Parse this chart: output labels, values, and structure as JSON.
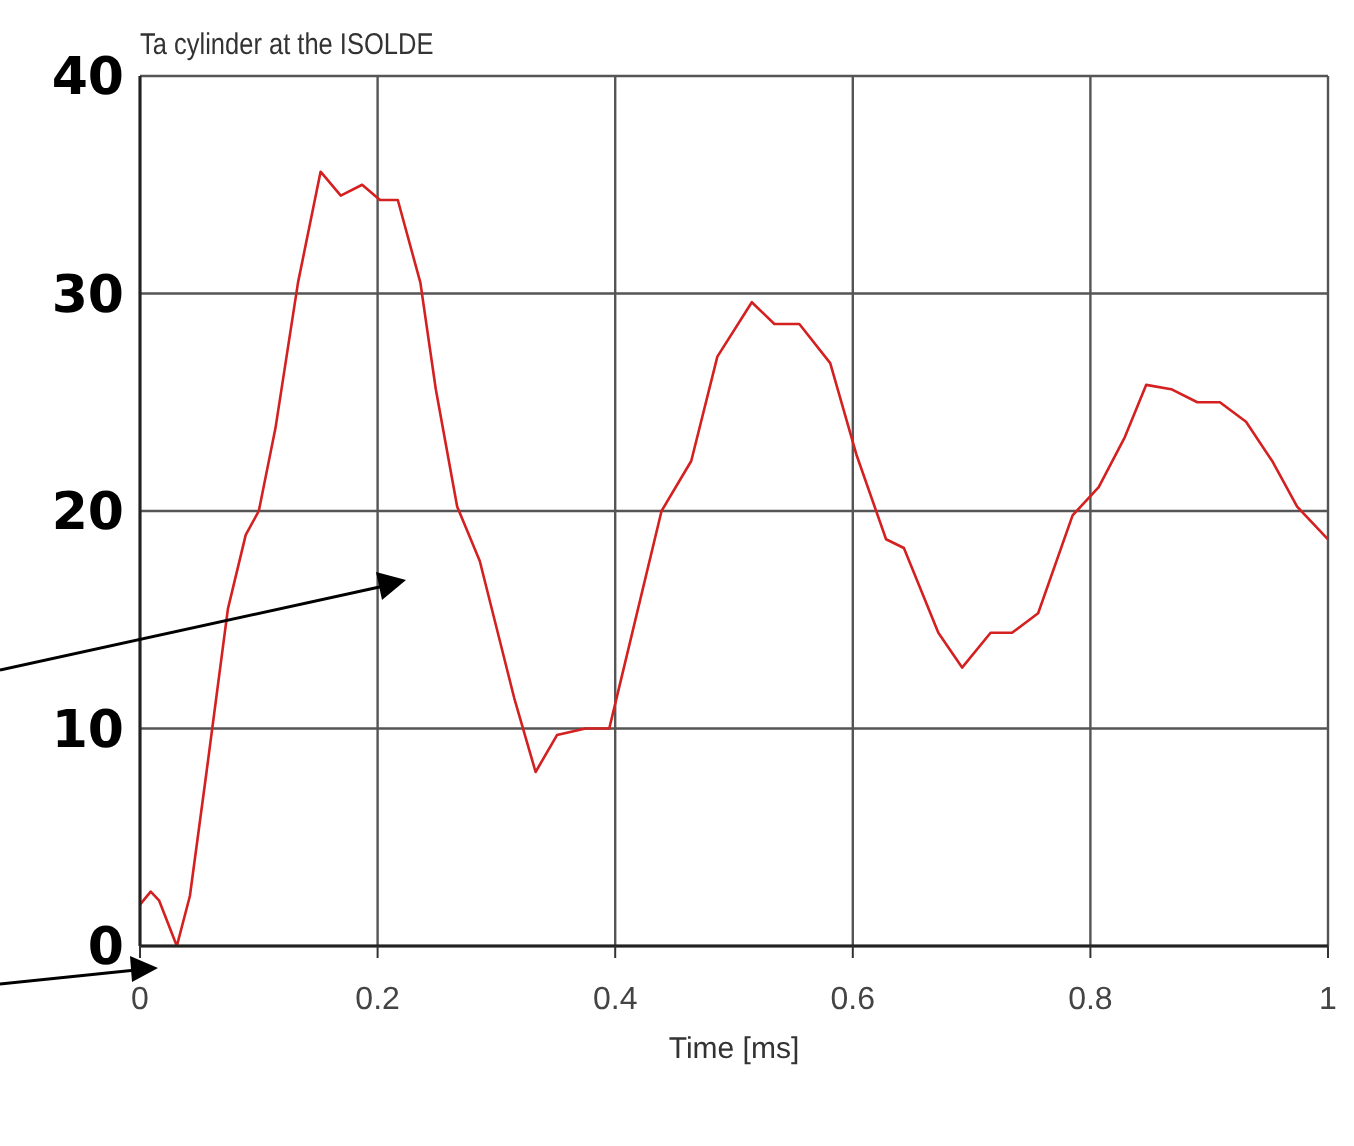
{
  "chart_data": {
    "type": "line",
    "title": "Ta cylinder at the ISOLDE",
    "xlabel": "Time [ms]",
    "x": [
      0,
      0.009,
      0.016,
      0.031,
      0.042,
      0.056,
      0.074,
      0.089,
      0.1,
      0.114,
      0.133,
      0.152,
      0.169,
      0.187,
      0.202,
      0.217,
      0.236,
      0.249,
      0.267,
      0.286,
      0.315,
      0.333,
      0.351,
      0.375,
      0.395,
      0.406,
      0.439,
      0.464,
      0.486,
      0.515,
      0.534,
      0.555,
      0.581,
      0.603,
      0.628,
      0.643,
      0.672,
      0.692,
      0.716,
      0.734,
      0.756,
      0.785,
      0.807,
      0.829,
      0.847,
      0.868,
      0.89,
      0.909,
      0.931,
      0.953,
      0.974,
      1
    ],
    "series": [
      {
        "color": "#d42020",
        "values": [
          1.9,
          2.5,
          2.1,
          0,
          2.3,
          8,
          15.5,
          18.9,
          20,
          23.8,
          30.5,
          35.6,
          34.5,
          35,
          34.3,
          34.3,
          30.5,
          25.6,
          20.2,
          17.7,
          11.4,
          8,
          9.7,
          10,
          10,
          12.5,
          20,
          22.3,
          27.1,
          29.6,
          28.6,
          28.6,
          26.8,
          22.6,
          18.7,
          18.3,
          14.4,
          12.8,
          14.4,
          14.4,
          15.3,
          19.8,
          21.1,
          23.4,
          25.8,
          25.6,
          25,
          25,
          24.1,
          22.3,
          20.2,
          18.7
        ]
      }
    ],
    "xlim": [
      0,
      1
    ],
    "xticks": [
      0,
      0.2,
      0.4,
      0.6,
      0.8,
      1
    ],
    "ylim": [
      0,
      40
    ],
    "yticks": [
      0,
      10,
      20,
      30,
      40
    ],
    "grid": true,
    "legend": false,
    "marker": "none",
    "line_style": "solid"
  }
}
